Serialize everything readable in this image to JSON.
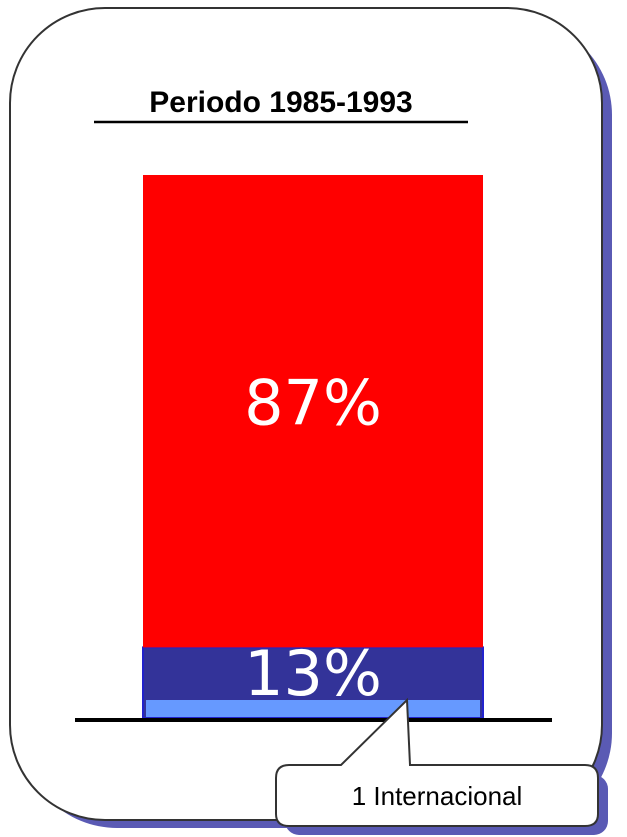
{
  "chart_data": {
    "type": "stacked-bar",
    "title": "Periodo 1985-1993",
    "categories": [
      null
    ],
    "series": [
      {
        "color": "#333399",
        "values": [
          13
        ],
        "value_labels": [
          "13%"
        ]
      },
      {
        "color": "#ff0000",
        "values": [
          87
        ],
        "value_labels": [
          "87%"
        ]
      }
    ],
    "ylim": [
      0,
      100
    ],
    "annotations": [
      "1 Internacional"
    ]
  }
}
